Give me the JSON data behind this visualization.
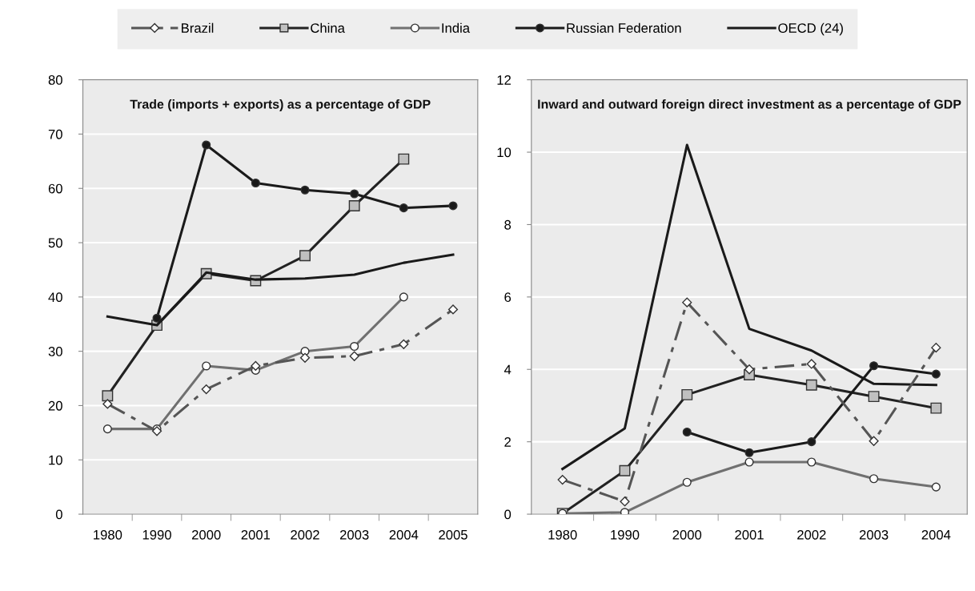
{
  "chart_data": [
    {
      "type": "line",
      "title": "Trade (imports + exports) as a percentage of GDP",
      "categories": [
        "1980",
        "1990",
        "2000",
        "2001",
        "2002",
        "2003",
        "2004",
        "2005"
      ],
      "series": [
        {
          "name": "Brazil",
          "color": "#555555",
          "marker": "diamond",
          "line_style": "dashed",
          "values": [
            20.3,
            15.3,
            23.0,
            27.3,
            28.8,
            29.1,
            31.3,
            37.7
          ]
        },
        {
          "name": "China",
          "color": "#222222",
          "marker": "square",
          "values": [
            21.8,
            34.8,
            44.3,
            43.0,
            47.6,
            56.8,
            65.4,
            null
          ]
        },
        {
          "name": "India",
          "color": "#707070",
          "marker": "circle",
          "values": [
            15.7,
            15.7,
            27.3,
            26.5,
            30.0,
            30.9,
            40.0,
            null
          ]
        },
        {
          "name": "Russian Federation",
          "color": "#1a1a1a",
          "marker": "circle",
          "values": [
            null,
            36.1,
            68.0,
            61.0,
            59.7,
            59.0,
            56.4,
            56.8
          ]
        },
        {
          "name": "OECD (24)",
          "color": "#1a1a1a",
          "marker": "none",
          "values": [
            36.4,
            34.8,
            44.5,
            43.2,
            43.4,
            44.1,
            46.3,
            47.8
          ]
        }
      ],
      "ylim": [
        0,
        80
      ],
      "yticks": [
        0,
        10,
        20,
        30,
        40,
        50,
        60,
        70,
        80
      ],
      "grid": "y",
      "legend": "top"
    },
    {
      "type": "line",
      "title": "Inward and outward foreign direct investment as a percentage of GDP",
      "categories": [
        "1980",
        "1990",
        "2000",
        "2001",
        "2002",
        "2003",
        "2004"
      ],
      "series": [
        {
          "color": "#555555",
          "marker": "diamond",
          "line_style": "dashed",
          "values": [
            0.95,
            0.35,
            5.85,
            4.0,
            4.15,
            2.02,
            4.6
          ]
        },
        {
          "color": "#222222",
          "marker": "square",
          "values": [
            0.02,
            1.2,
            3.3,
            3.85,
            3.57,
            3.25,
            2.93
          ]
        },
        {
          "color": "#707070",
          "marker": "circle",
          "values": [
            0.02,
            0.05,
            0.88,
            1.44,
            1.44,
            0.98,
            0.75
          ]
        },
        {
          "color": "#1a1a1a",
          "marker": "circle",
          "values": [
            null,
            null,
            2.27,
            1.7,
            2.0,
            4.1,
            3.87
          ]
        },
        {
          "color": "#1a1a1a",
          "marker": "none",
          "values": [
            1.25,
            2.37,
            10.2,
            5.12,
            4.52,
            3.6,
            3.57
          ]
        }
      ],
      "ylim": [
        0,
        12
      ],
      "yticks": [
        0,
        2,
        4,
        6,
        8,
        10,
        12
      ],
      "grid": "y"
    }
  ]
}
